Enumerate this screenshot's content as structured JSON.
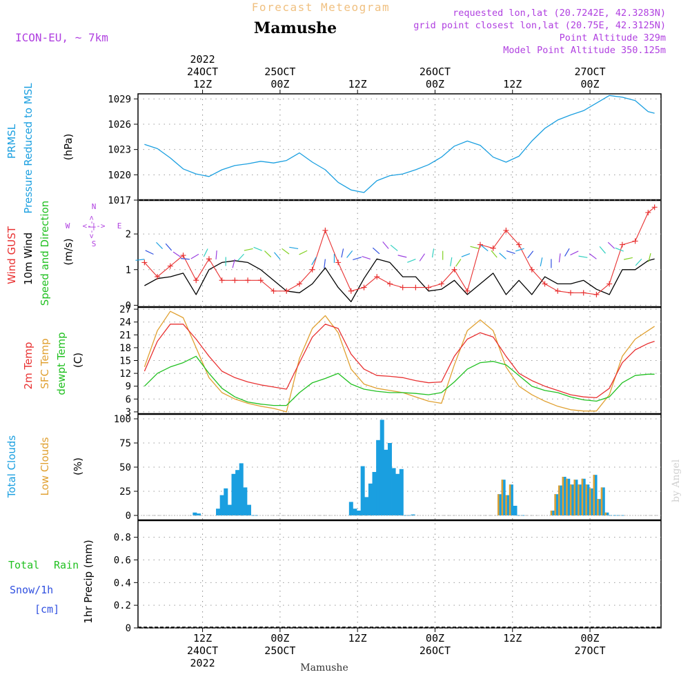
{
  "header": {
    "title_main": "Mamushe",
    "title_top": "Forecast Meteogram",
    "model": "ICON-EU, ~ 7km",
    "info_lines": [
      "requested lon,lat (20.7242E, 42.3283N)",
      "grid point closest lon,lat (20.75E, 42.3125N)",
      "Point Altitude 329m",
      "Model Point Altitude 350.125m"
    ],
    "bottom_name": "Mamushe",
    "watermark": "by Angel"
  },
  "time_axis": {
    "top_labels": [
      {
        "hour": 18,
        "lines": [
          "2022",
          "24OCT",
          "12Z"
        ]
      },
      {
        "hour": 30,
        "lines": [
          "25OCT",
          "00Z"
        ]
      },
      {
        "hour": 42,
        "lines": [
          "12Z"
        ]
      },
      {
        "hour": 54,
        "lines": [
          "26OCT",
          "00Z"
        ]
      },
      {
        "hour": 66,
        "lines": [
          "12Z"
        ]
      },
      {
        "hour": 78,
        "lines": [
          "27OCT",
          "00Z"
        ]
      }
    ],
    "bottom_labels": [
      {
        "hour": 18,
        "lines": [
          "12Z",
          "24OCT",
          "2022"
        ]
      },
      {
        "hour": 30,
        "lines": [
          "00Z",
          "25OCT"
        ]
      },
      {
        "hour": 42,
        "lines": [
          "12Z"
        ]
      },
      {
        "hour": 54,
        "lines": [
          "00Z",
          "26OCT"
        ]
      },
      {
        "hour": 66,
        "lines": [
          "12Z"
        ]
      },
      {
        "hour": 78,
        "lines": [
          "00Z",
          "27OCT"
        ]
      }
    ]
  },
  "panels": {
    "pressure": {
      "labels": [
        "PRMSL",
        "Pressure Reduced to MSL",
        "(hPa)"
      ],
      "label_colors": [
        "#1a9fe0",
        "#1a9fe0",
        "#000000"
      ],
      "ticks": [
        "1017",
        "1020",
        "1023",
        "1026",
        "1029"
      ]
    },
    "wind": {
      "labels": [
        "Wind GUST",
        "10m Wind",
        "Speed and Direction",
        "(m/s)"
      ],
      "label_colors": [
        "#e83030",
        "#000000",
        "#20c020",
        "#000000"
      ],
      "ticks": [
        "0",
        "1",
        "2"
      ],
      "compass": {
        "n": "N",
        "s": "S",
        "e": "E",
        "w": "W",
        "bar": "<-|->"
      }
    },
    "temperature": {
      "labels": [
        "2m Temp",
        "SFC Temp",
        "dewpt Temp",
        "(C)"
      ],
      "label_colors": [
        "#e83030",
        "#e0a030",
        "#20c020",
        "#000000"
      ],
      "ticks": [
        "3",
        "6",
        "9",
        "12",
        "15",
        "18",
        "21",
        "24",
        "27"
      ]
    },
    "clouds": {
      "labels": [
        "Total Clouds",
        "Low Clouds",
        "(%)"
      ],
      "label_colors": [
        "#1a9fe0",
        "#e0a030",
        "#000000"
      ],
      "ticks": [
        "0",
        "25",
        "50",
        "75",
        "100"
      ]
    },
    "precip": {
      "labels": [
        "Total",
        "Rain",
        "Snow/1h",
        "[cm]",
        "1hr Precip (mm)"
      ],
      "label_colors": [
        "#20c020",
        "#20c020",
        "#3050e0",
        "#3050e0",
        "#000000"
      ],
      "ticks": [
        "0",
        "0.2",
        "0.4",
        "0.6",
        "0.8"
      ]
    }
  },
  "colors": {
    "pressure": "#1a9fe0",
    "gust": "#e83030",
    "wind": "#000000",
    "temp2m": "#e83030",
    "sfc": "#e0a030",
    "dewpt": "#20c020",
    "total_cloud": "#1a9fe0",
    "low_cloud": "#e0a030",
    "title_top": "#f0c080",
    "info": "#b040e0"
  },
  "chart_data": [
    {
      "type": "line",
      "title": "PRMSL Pressure Reduced to MSL",
      "ylabel": "hPa",
      "ylim": [
        1017,
        1029.6
      ],
      "x": [
        9,
        11,
        13,
        15,
        17,
        19,
        21,
        23,
        25,
        27,
        29,
        31,
        33,
        35,
        37,
        39,
        41,
        43,
        45,
        47,
        49,
        51,
        53,
        55,
        57,
        59,
        61,
        63,
        65,
        67,
        69,
        71,
        73,
        75,
        77,
        79,
        81,
        83,
        85,
        87,
        88
      ],
      "series": [
        {
          "name": "PRMSL",
          "values": [
            1023.6,
            1023.1,
            1022,
            1020.7,
            1020.1,
            1019.8,
            1020.6,
            1021.1,
            1021.3,
            1021.6,
            1021.4,
            1021.7,
            1022.6,
            1021.5,
            1020.6,
            1019.1,
            1018.2,
            1017.9,
            1019.3,
            1019.9,
            1020.1,
            1020.6,
            1021.2,
            1022.1,
            1023.4,
            1024,
            1023.5,
            1022.1,
            1021.5,
            1022.2,
            1024,
            1025.5,
            1026.5,
            1027.1,
            1027.6,
            1028.5,
            1029.4,
            1029.2,
            1028.8,
            1027.5,
            1027.3
          ]
        }
      ]
    },
    {
      "type": "line",
      "title": "Wind GUST / 10m Wind",
      "ylabel": "m/s",
      "ylim": [
        -0.05,
        2.95
      ],
      "x": [
        9,
        11,
        13,
        15,
        17,
        19,
        21,
        23,
        25,
        27,
        29,
        31,
        33,
        35,
        37,
        39,
        41,
        43,
        45,
        47,
        49,
        51,
        53,
        55,
        57,
        59,
        61,
        63,
        65,
        67,
        69,
        71,
        73,
        75,
        77,
        79,
        81,
        83,
        85,
        87,
        88
      ],
      "series": [
        {
          "name": "Wind GUST",
          "values": [
            1.2,
            0.8,
            1.1,
            1.4,
            0.7,
            1.3,
            0.7,
            0.7,
            0.7,
            0.7,
            0.4,
            0.4,
            0.6,
            1.0,
            2.1,
            1.2,
            0.4,
            0.5,
            0.8,
            0.6,
            0.5,
            0.5,
            0.5,
            0.6,
            1.0,
            0.4,
            1.7,
            1.6,
            2.1,
            1.7,
            1.0,
            0.6,
            0.4,
            0.35,
            0.35,
            0.3,
            0.6,
            1.7,
            1.8,
            2.6,
            2.75
          ]
        },
        {
          "name": "10m Wind",
          "values": [
            0.55,
            0.75,
            0.8,
            0.9,
            0.3,
            1.0,
            1.2,
            1.25,
            1.2,
            1.0,
            0.7,
            0.4,
            0.35,
            0.6,
            1.05,
            0.5,
            0.1,
            0.75,
            1.3,
            1.2,
            0.8,
            0.8,
            0.4,
            0.45,
            0.7,
            0.3,
            0.6,
            0.9,
            0.3,
            0.7,
            0.3,
            0.8,
            0.6,
            0.6,
            0.7,
            0.45,
            0.3,
            1.0,
            1.0,
            1.25,
            1.3
          ]
        }
      ]
    },
    {
      "type": "line",
      "title": "2m Temp / SFC Temp / dewpt Temp",
      "ylabel": "C",
      "ylim": [
        2.5,
        27.5
      ],
      "x": [
        9,
        11,
        13,
        15,
        17,
        19,
        21,
        23,
        25,
        27,
        29,
        31,
        33,
        35,
        37,
        39,
        41,
        43,
        45,
        47,
        49,
        51,
        53,
        55,
        57,
        59,
        61,
        63,
        65,
        67,
        69,
        71,
        73,
        75,
        77,
        79,
        81,
        83,
        85,
        87,
        88
      ],
      "series": [
        {
          "name": "2m Temp",
          "values": [
            12.5,
            19.5,
            23.5,
            23.5,
            20,
            16,
            12.5,
            11,
            10,
            9.3,
            8.8,
            8.3,
            14.5,
            20.5,
            23.5,
            22.5,
            16.5,
            13,
            11.5,
            11.3,
            11,
            10.3,
            9.8,
            10,
            16,
            20,
            21.5,
            20.5,
            16,
            12,
            10.3,
            9,
            8,
            7,
            6.5,
            6.3,
            8.5,
            14.5,
            17.5,
            19,
            19.5
          ]
        },
        {
          "name": "SFC Temp",
          "values": [
            13.5,
            22,
            26.5,
            25,
            18,
            11,
            7.5,
            6,
            5,
            4.3,
            3.8,
            3,
            15.5,
            22.5,
            25.5,
            21.5,
            13,
            9.5,
            8.5,
            8,
            7.5,
            6.5,
            5.5,
            5,
            14,
            22,
            24.5,
            22,
            13.5,
            9,
            7,
            5.5,
            4.3,
            3.5,
            3.2,
            3.2,
            7,
            16,
            20,
            22,
            23
          ]
        },
        {
          "name": "dewpt Temp",
          "values": [
            9,
            12,
            13.5,
            14.5,
            16,
            12,
            8.5,
            6.5,
            5.3,
            4.8,
            4.5,
            4.5,
            7.5,
            9.8,
            10.8,
            12,
            9.5,
            8.3,
            7.8,
            7.5,
            7.5,
            7.3,
            7,
            7.5,
            10,
            13,
            14.5,
            14.8,
            14,
            11.5,
            9,
            8,
            7.5,
            6.5,
            5.8,
            5.5,
            6.5,
            9.8,
            11.5,
            11.8,
            11.8
          ]
        }
      ]
    },
    {
      "type": "bar",
      "title": "Total Clouds / Low Clouds",
      "ylabel": "%",
      "ylim": [
        -5,
        105
      ],
      "x": [
        16.8,
        17.4,
        20.4,
        21,
        21.6,
        22.2,
        22.8,
        23.4,
        24,
        24.6,
        25.2,
        25.8,
        26.4,
        41,
        41.6,
        42.2,
        42.8,
        43.4,
        44,
        44.6,
        45.2,
        45.8,
        46.4,
        47,
        47.6,
        48.2,
        48.8,
        49.4,
        50,
        50.6,
        64,
        64.6,
        65.2,
        65.8,
        66.4,
        67,
        67.6,
        72.2,
        72.8,
        73.4,
        74,
        74.6,
        75.2,
        75.8,
        76.4,
        77,
        77.6,
        78.2,
        78.8,
        79.4,
        80,
        80.6,
        81.2,
        81.8,
        82.4,
        83
      ],
      "series": [
        {
          "name": "Total Clouds",
          "values": [
            3,
            2,
            7,
            21,
            28,
            11,
            43,
            47,
            54,
            29,
            11,
            0,
            0,
            14,
            7,
            5,
            51,
            19,
            33,
            45,
            78,
            99,
            68,
            75,
            49,
            43,
            48,
            0,
            0,
            1,
            22,
            37,
            21,
            32,
            10,
            0,
            0,
            5,
            22,
            31,
            40,
            38,
            32,
            37,
            32,
            38,
            32,
            28,
            42,
            17,
            29,
            3,
            0,
            0,
            0,
            0
          ]
        },
        {
          "name": "Low Clouds",
          "values": [
            0,
            0,
            0,
            0,
            0,
            0,
            0,
            0,
            0,
            0,
            0,
            0,
            0,
            0,
            0,
            0,
            0,
            0,
            0,
            0,
            0,
            0,
            0,
            0,
            0,
            0,
            0,
            0,
            0,
            0,
            22,
            37,
            21,
            32,
            0,
            0,
            0,
            5,
            22,
            31,
            40,
            38,
            32,
            37,
            32,
            38,
            32,
            28,
            42,
            17,
            29,
            3,
            0,
            0,
            0,
            0
          ]
        }
      ]
    },
    {
      "type": "bar",
      "title": "1hr Precip",
      "ylabel": "mm",
      "ylim": [
        0,
        0.95
      ],
      "x": [],
      "series": [
        {
          "name": "Total Rain",
          "values": []
        }
      ]
    }
  ]
}
